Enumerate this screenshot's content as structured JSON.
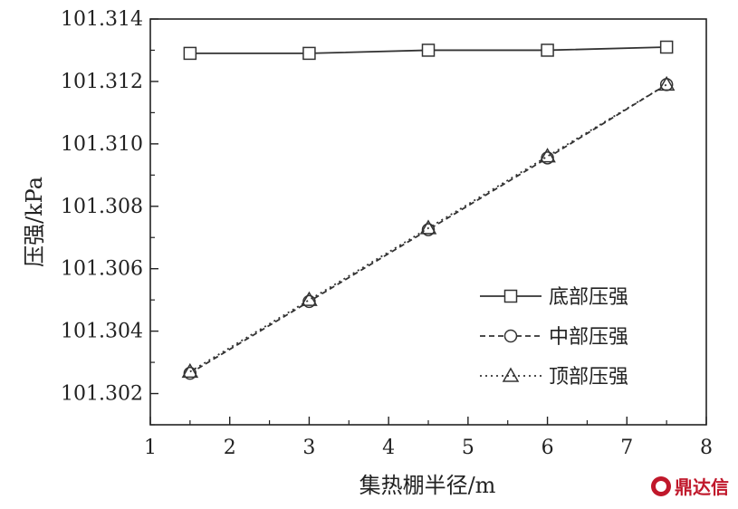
{
  "chart_data": {
    "type": "line",
    "title": "",
    "xlabel": "集热棚半径/m",
    "ylabel": "压强/kPa",
    "xlim": [
      1,
      8
    ],
    "ylim": [
      101.301,
      101.314
    ],
    "xticks": [
      1,
      2,
      3,
      4,
      5,
      6,
      7,
      8
    ],
    "xtick_labels": [
      "1",
      "2",
      "3",
      "4",
      "5",
      "6",
      "7",
      "8"
    ],
    "yticks": [
      101.302,
      101.304,
      101.306,
      101.308,
      101.31,
      101.312,
      101.314
    ],
    "ytick_labels": [
      "101.302",
      "101.304",
      "101.306",
      "101.308",
      "101.310",
      "101.312",
      "101.314"
    ],
    "grid": false,
    "legend_position": "lower-right",
    "x": [
      1.5,
      3.0,
      4.5,
      6.0,
      7.5
    ],
    "series": [
      {
        "name": "底部压强",
        "marker": "square",
        "dash": "solid",
        "color": "#333333",
        "values": [
          101.3129,
          101.3129,
          101.313,
          101.313,
          101.3131
        ]
      },
      {
        "name": "中部压强",
        "marker": "circle",
        "dash": "dashed",
        "color": "#333333",
        "values": [
          101.30265,
          101.30495,
          101.30725,
          101.30955,
          101.3119
        ]
      },
      {
        "name": "顶部压强",
        "marker": "triangle",
        "dash": "dotted",
        "color": "#333333",
        "values": [
          101.3027,
          101.305,
          101.3073,
          101.3096,
          101.3119
        ]
      }
    ]
  },
  "watermark": {
    "text": "鼎达信"
  }
}
